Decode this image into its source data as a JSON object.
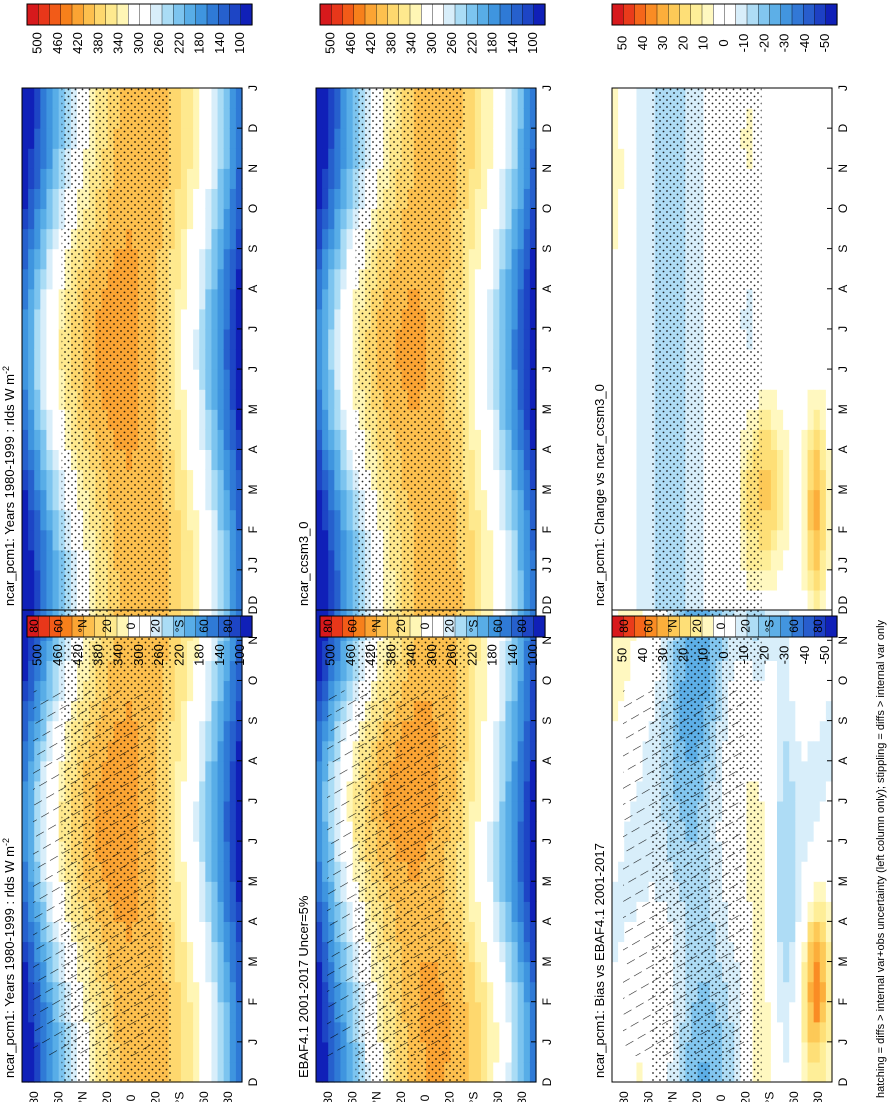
{
  "figure": {
    "footnote": "hatching = diffs > internal var+obs uncertainty (left column only); stippling = diffs > internal var only"
  },
  "colors": {
    "abs_scale": [
      "#d7191c",
      "#e8371a",
      "#f25b18",
      "#f7801b",
      "#fba433",
      "#fdc04e",
      "#fed86e",
      "#fee98e",
      "#fff6b5",
      "#ffffff",
      "#ffffff",
      "#d8eefa",
      "#aadcf5",
      "#7cc4ef",
      "#58ade7",
      "#3f95df",
      "#2f7ad6",
      "#2660cd",
      "#1d45c5",
      "#1020b8"
    ],
    "diff_scale": [
      "#d7191c",
      "#ea3b1b",
      "#f5661a",
      "#fa8c24",
      "#fcae3b",
      "#fdc957",
      "#fedf77",
      "#feee98",
      "#fff8c0",
      "#ffffff",
      "#ffffff",
      "#d8eefa",
      "#aedcf5",
      "#82c6ef",
      "#5dafe7",
      "#4295df",
      "#3278d6",
      "#285dcd",
      "#1d40c4",
      "#1020b8"
    ],
    "hatch": "#000000",
    "stipple": "#000000"
  },
  "chart_data": [
    {
      "id": "p1",
      "type": "heatmap",
      "title": "ncar_pcm1: Years 1980-1999 : rlds W m-2",
      "title_main": "ncar_pcm1: Years 1980-1999 : rlds W m",
      "title_sup": "-2",
      "x": [
        "D",
        "J",
        "F",
        "M",
        "A",
        "M",
        "J",
        "J",
        "A",
        "S",
        "O",
        "N",
        "D",
        "J"
      ],
      "y_ticks": [
        "80",
        "60",
        "°N",
        "20",
        "0",
        "20",
        "°S",
        "60",
        "80"
      ],
      "colorbar_labels": [
        "500",
        "460",
        "420",
        "380",
        "340",
        "300",
        "260",
        "220",
        "180",
        "140",
        "100"
      ],
      "colorbar_range": [
        80,
        520
      ],
      "kind": "abs",
      "hatched": true,
      "stippled": true
    },
    {
      "id": "p2",
      "type": "heatmap",
      "title": "ncar_pcm1: Years 1980-1999 : rlds W m-2",
      "title_main": "ncar_pcm1: Years 1980-1999 : rlds W m",
      "title_sup": "-2",
      "x": [
        "D",
        "J",
        "F",
        "M",
        "A",
        "M",
        "J",
        "J",
        "A",
        "S",
        "O",
        "N",
        "D",
        "J"
      ],
      "y_ticks": [
        "80",
        "60",
        "°N",
        "20",
        "0",
        "20",
        "°S",
        "60",
        "80"
      ],
      "colorbar_labels": [
        "500",
        "460",
        "420",
        "380",
        "340",
        "300",
        "260",
        "220",
        "180",
        "140",
        "100"
      ],
      "colorbar_range": [
        80,
        520
      ],
      "kind": "abs",
      "hatched": false,
      "stippled": true
    },
    {
      "id": "p3",
      "type": "heatmap",
      "title": "EBAF4.1 2001-2017 Uncer=5%",
      "title_main": "EBAF4.1 2001-2017 Uncer=5%",
      "title_sup": "",
      "x": [
        "D",
        "J",
        "F",
        "M",
        "A",
        "M",
        "J",
        "J",
        "A",
        "S",
        "O",
        "N",
        "D",
        "J"
      ],
      "y_ticks": [
        "80",
        "60",
        "°N",
        "20",
        "0",
        "20",
        "°S",
        "60",
        "80"
      ],
      "colorbar_labels": [
        "500",
        "460",
        "420",
        "380",
        "340",
        "300",
        "260",
        "220",
        "180",
        "140",
        "100"
      ],
      "colorbar_range": [
        80,
        520
      ],
      "kind": "abs",
      "hatched": true,
      "stippled": true
    },
    {
      "id": "p4",
      "type": "heatmap",
      "title": "ncar_ccsm3_0",
      "title_main": "ncar_ccsm3_0",
      "title_sup": "",
      "x": [
        "D",
        "J",
        "F",
        "M",
        "A",
        "M",
        "J",
        "J",
        "A",
        "S",
        "O",
        "N",
        "D",
        "J"
      ],
      "y_ticks": [
        "80",
        "60",
        "°N",
        "20",
        "0",
        "20",
        "°S",
        "60",
        "80"
      ],
      "colorbar_labels": [
        "500",
        "460",
        "420",
        "380",
        "340",
        "300",
        "260",
        "220",
        "180",
        "140",
        "100"
      ],
      "colorbar_range": [
        80,
        520
      ],
      "kind": "abs",
      "hatched": false,
      "stippled": true
    },
    {
      "id": "p5",
      "type": "heatmap",
      "title": "ncar_pcm1: Bias vs EBAF4.1 2001-2017",
      "title_main": "ncar_pcm1: Bias vs EBAF4.1 2001-2017",
      "title_sup": "",
      "x": [
        "D",
        "J",
        "F",
        "M",
        "A",
        "M",
        "J",
        "J",
        "A",
        "S",
        "O",
        "N",
        "D",
        "J"
      ],
      "y_ticks": [
        "80",
        "60",
        "°N",
        "20",
        "0",
        "20",
        "°S",
        "60",
        "80"
      ],
      "colorbar_labels": [
        "50",
        "40",
        "30",
        "20",
        "10",
        "0",
        "-10",
        "-20",
        "-30",
        "-40",
        "-50"
      ],
      "colorbar_range": [
        -55,
        55
      ],
      "kind": "diff",
      "hatched": true,
      "stippled": true
    },
    {
      "id": "p6",
      "type": "heatmap",
      "title": "ncar_pcm1: Change vs ncar_ccsm3_0",
      "title_main": "ncar_pcm1: Change vs ncar_ccsm3_0",
      "title_sup": "",
      "x": [
        "D",
        "J",
        "F",
        "M",
        "A",
        "M",
        "J",
        "J",
        "A",
        "S",
        "O",
        "N",
        "D",
        "J"
      ],
      "y_ticks": [
        "80",
        "60",
        "°N",
        "20",
        "0",
        "20",
        "°S",
        "60",
        "80"
      ],
      "colorbar_labels": [
        "50",
        "40",
        "30",
        "20",
        "10",
        "0",
        "-10",
        "-20",
        "-30",
        "-40",
        "-50"
      ],
      "colorbar_range": [
        -55,
        55
      ],
      "kind": "diff",
      "hatched": false,
      "stippled": true
    }
  ]
}
